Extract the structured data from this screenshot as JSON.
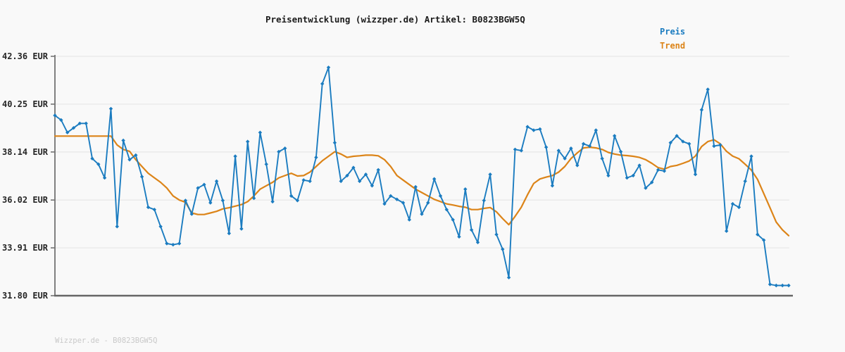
{
  "watermark": "Wizzper.de - B0823BGW5Q",
  "colors": {
    "preis": "#1b7cc0",
    "trend": "#dc8418",
    "background": "#f9f9f9",
    "grid": "#e8e8e8",
    "spine": "#737373",
    "tick_text": "#262626",
    "title_text": "#1c1c1c",
    "watermark_text": "#c9c9c9"
  },
  "chart_data": {
    "type": "line",
    "title": "Preisentwicklung (wizzper.de) Artikel: B0823BGW5Q",
    "xlabel": "",
    "ylabel": "",
    "x_axis_labels": [],
    "ylim": [
      31.8,
      42.36
    ],
    "y_tick_values": [
      42.36,
      40.25,
      38.14,
      36.02,
      33.91,
      31.8
    ],
    "y_tick_labels": [
      "42.36 EUR",
      "40.25 EUR",
      "38.14 EUR",
      "36.02 EUR",
      "33.91 EUR",
      "31.80 EUR"
    ],
    "grid": "horizontal",
    "legend_position": "top-right",
    "n_points": 119,
    "series": [
      {
        "name": "Preis",
        "color": "#1b7cc0",
        "marker": "diamond",
        "values": [
          39.75,
          39.55,
          39.0,
          39.2,
          39.4,
          39.4,
          37.85,
          37.6,
          37.0,
          40.05,
          34.85,
          38.65,
          37.8,
          38.0,
          37.05,
          35.7,
          35.6,
          34.85,
          34.1,
          34.05,
          34.1,
          36.0,
          35.4,
          36.55,
          36.7,
          35.9,
          36.85,
          36.0,
          34.55,
          37.95,
          34.75,
          38.6,
          36.1,
          39.0,
          37.6,
          35.95,
          38.15,
          38.3,
          36.2,
          36.0,
          36.9,
          36.85,
          37.9,
          41.15,
          41.87,
          38.55,
          36.85,
          37.1,
          37.45,
          36.85,
          37.15,
          36.65,
          37.35,
          35.85,
          36.2,
          36.05,
          35.9,
          35.15,
          36.6,
          35.4,
          35.9,
          36.95,
          36.2,
          35.6,
          35.15,
          34.4,
          36.5,
          34.7,
          34.15,
          36.0,
          37.15,
          34.5,
          33.85,
          32.6,
          38.25,
          38.2,
          39.25,
          39.1,
          39.15,
          38.35,
          36.65,
          38.2,
          37.85,
          38.3,
          37.55,
          38.5,
          38.4,
          39.1,
          37.85,
          37.1,
          38.85,
          38.15,
          37.0,
          37.1,
          37.55,
          36.55,
          36.8,
          37.35,
          37.3,
          38.55,
          38.85,
          38.6,
          38.5,
          37.15,
          40.0,
          40.9,
          38.4,
          38.45,
          34.65,
          35.85,
          35.7,
          36.85,
          37.95,
          34.5,
          34.25,
          32.3,
          32.25,
          32.25,
          32.25
        ]
      },
      {
        "name": "Trend",
        "color": "#dc8418",
        "marker": "none",
        "values": [
          38.84,
          38.84,
          38.84,
          38.84,
          38.84,
          38.84,
          38.84,
          38.84,
          38.84,
          38.84,
          38.45,
          38.25,
          38.17,
          37.8,
          37.5,
          37.2,
          37.0,
          36.8,
          36.55,
          36.2,
          36.02,
          35.92,
          35.45,
          35.38,
          35.38,
          35.45,
          35.52,
          35.63,
          35.68,
          35.75,
          35.82,
          35.95,
          36.2,
          36.5,
          36.65,
          36.8,
          37.0,
          37.1,
          37.2,
          37.08,
          37.1,
          37.25,
          37.5,
          37.75,
          37.95,
          38.15,
          38.05,
          37.9,
          37.95,
          37.97,
          38.0,
          38.0,
          37.97,
          37.8,
          37.5,
          37.1,
          36.9,
          36.7,
          36.5,
          36.35,
          36.2,
          36.05,
          35.95,
          35.85,
          35.8,
          35.74,
          35.7,
          35.6,
          35.6,
          35.65,
          35.69,
          35.5,
          35.2,
          34.93,
          35.3,
          35.7,
          36.25,
          36.75,
          36.95,
          37.03,
          37.1,
          37.25,
          37.5,
          37.85,
          38.1,
          38.32,
          38.35,
          38.32,
          38.25,
          38.12,
          38.05,
          38.0,
          37.98,
          37.95,
          37.9,
          37.8,
          37.64,
          37.45,
          37.38,
          37.5,
          37.55,
          37.64,
          37.74,
          37.96,
          38.38,
          38.6,
          38.68,
          38.5,
          38.17,
          37.96,
          37.84,
          37.6,
          37.34,
          36.93,
          36.3,
          35.68,
          35.05,
          34.7,
          34.45
        ]
      }
    ]
  }
}
